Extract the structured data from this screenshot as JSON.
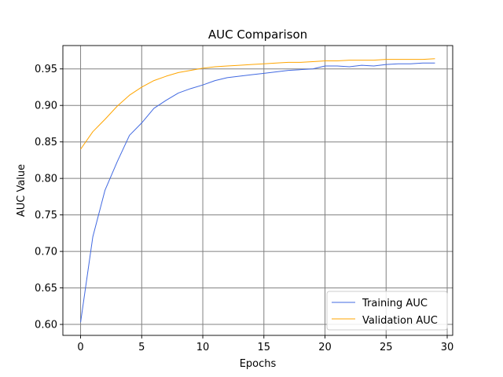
{
  "chart_data": {
    "type": "line",
    "title": "AUC Comparison",
    "xlabel": "Epochs",
    "ylabel": "AUC Value",
    "xlim": [
      -1.45,
      30.45
    ],
    "ylim": [
      0.585,
      0.982
    ],
    "xticks": [
      0,
      5,
      10,
      15,
      20,
      25,
      30
    ],
    "yticks": [
      0.6,
      0.65,
      0.7,
      0.75,
      0.8,
      0.85,
      0.9,
      0.95
    ],
    "ytick_labels": [
      "0.60",
      "0.65",
      "0.70",
      "0.75",
      "0.80",
      "0.85",
      "0.90",
      "0.95"
    ],
    "grid": true,
    "legend_position": "lower-right",
    "x": [
      0,
      1,
      2,
      3,
      4,
      5,
      6,
      7,
      8,
      9,
      10,
      11,
      12,
      13,
      14,
      15,
      16,
      17,
      18,
      19,
      20,
      21,
      22,
      23,
      24,
      25,
      26,
      27,
      28,
      29
    ],
    "series": [
      {
        "name": "Training AUC",
        "color": "#4169e1",
        "values": [
          0.603,
          0.72,
          0.784,
          0.823,
          0.859,
          0.876,
          0.896,
          0.907,
          0.917,
          0.923,
          0.928,
          0.934,
          0.938,
          0.94,
          0.942,
          0.944,
          0.946,
          0.948,
          0.949,
          0.95,
          0.954,
          0.954,
          0.953,
          0.955,
          0.954,
          0.956,
          0.957,
          0.957,
          0.958,
          0.958
        ]
      },
      {
        "name": "Validation AUC",
        "color": "#ffa500",
        "values": [
          0.84,
          0.864,
          0.881,
          0.899,
          0.914,
          0.925,
          0.934,
          0.94,
          0.945,
          0.948,
          0.951,
          0.953,
          0.954,
          0.955,
          0.956,
          0.957,
          0.958,
          0.959,
          0.959,
          0.96,
          0.961,
          0.961,
          0.962,
          0.962,
          0.962,
          0.963,
          0.963,
          0.963,
          0.963,
          0.964
        ]
      }
    ]
  }
}
